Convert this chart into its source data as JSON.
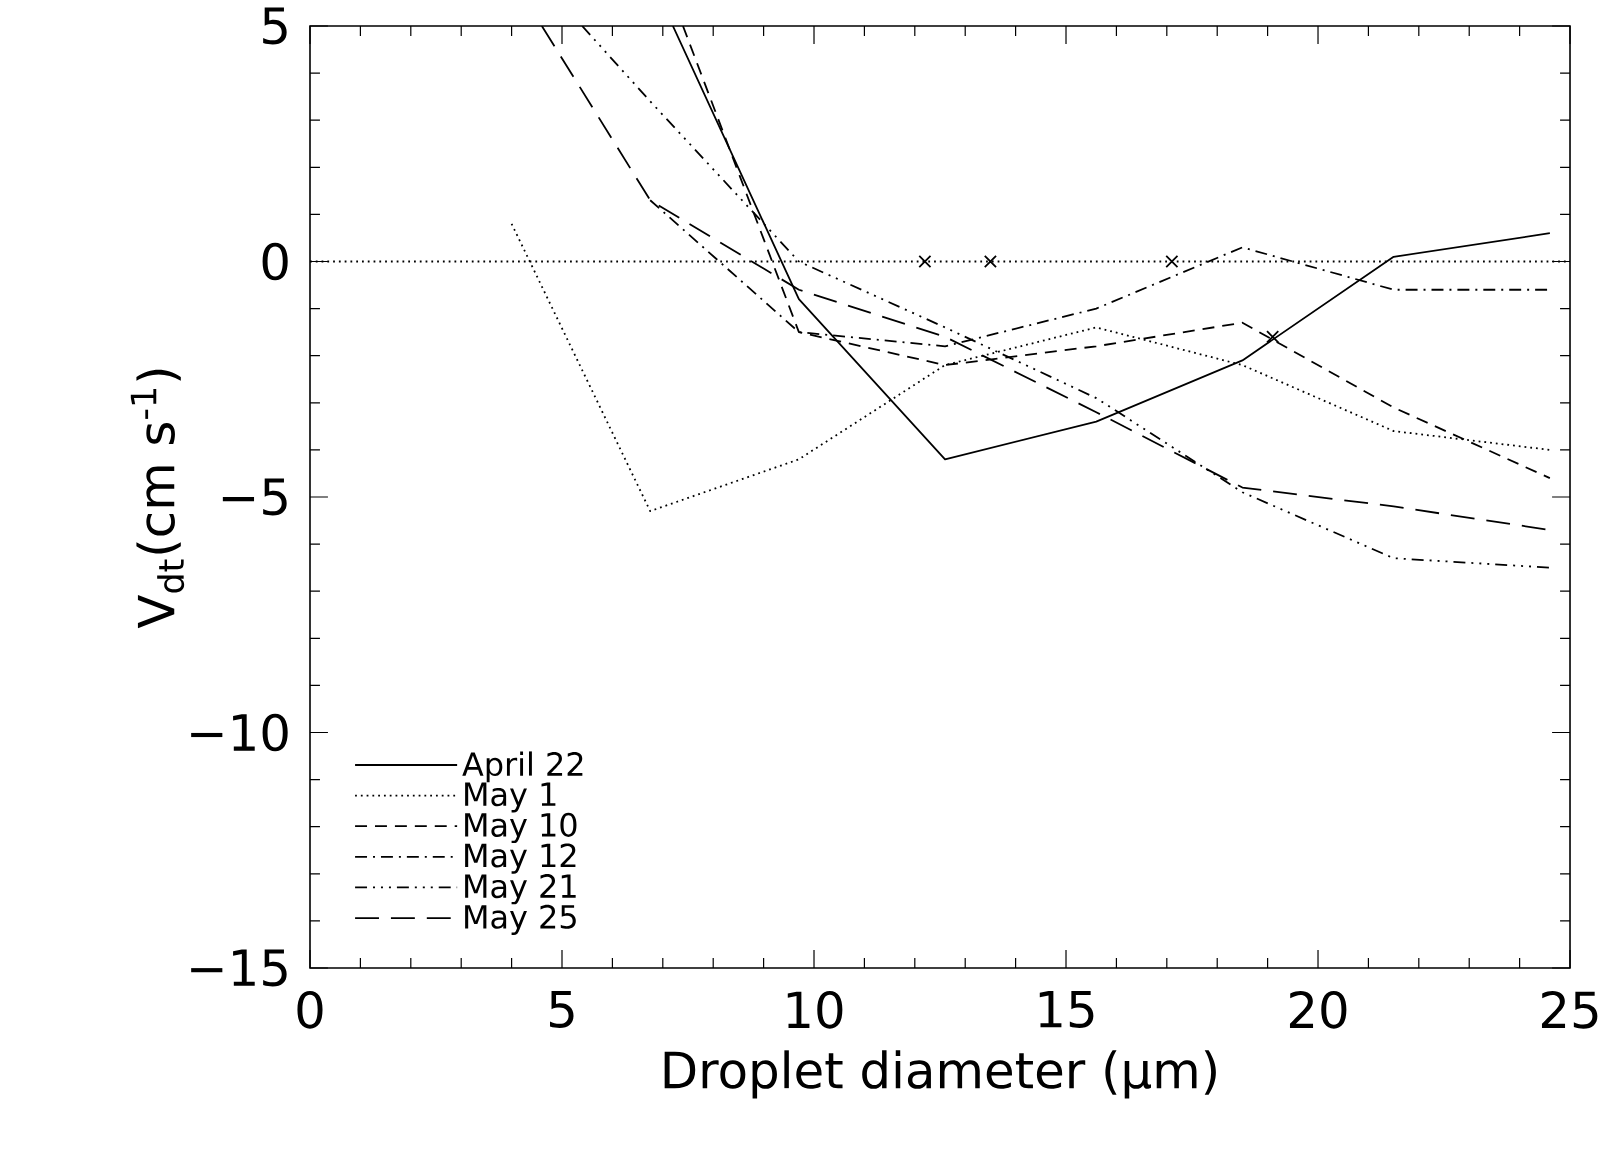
{
  "chart_data": {
    "type": "line",
    "xlabel": "Droplet diameter (μm)",
    "ylabel": "V$_{dt}$(cm s$^{-1}$)",
    "xlim": [
      0,
      25
    ],
    "xticks": [
      0,
      5,
      10,
      15,
      20,
      25
    ],
    "ylim": [
      -15,
      5
    ],
    "yticks": [
      {
        "value": -15,
        "label": "−15"
      },
      {
        "value": -10,
        "label": "−10"
      },
      {
        "value": -5,
        "label": "−5"
      },
      0,
      5
    ],
    "grid": false,
    "legend": "bottom left",
    "ref_lines": [
      {
        "axis": "y",
        "value": 0,
        "line_style": "dotted",
        "color": "#000000"
      }
    ],
    "series": [
      {
        "name": "April 22",
        "color": "#000000",
        "line_style": "solid",
        "x": [
          7.2,
          9.7,
          12.6,
          15.6,
          18.5,
          21.5,
          24.6
        ],
        "values": [
          5,
          -0.8,
          -4.2,
          -3.4,
          -2.1,
          0.1,
          0.6
        ]
      },
      {
        "name": "May 1",
        "color": "#000000",
        "line_style": "dotted",
        "x": [
          4.0,
          6.75,
          9.7,
          12.6,
          15.6,
          18.5,
          21.5,
          24.6
        ],
        "values": [
          0.8,
          -5.3,
          -4.2,
          -2.2,
          -1.4,
          -2.2,
          -3.6,
          -4.0
        ]
      },
      {
        "name": "May 10",
        "color": "#000000",
        "line_style": "dashed",
        "x": [
          7.4,
          9.7,
          12.6,
          15.6,
          18.5,
          21.5,
          24.6
        ],
        "values": [
          5,
          -1.5,
          -2.2,
          -1.8,
          -1.3,
          -3.1,
          -4.6
        ]
      },
      {
        "name": "May 12",
        "color": "#000000",
        "line_style": "dashdot",
        "x": [
          6.75,
          9.7,
          12.6,
          15.6,
          18.5,
          21.5,
          24.6
        ],
        "values": [
          1.3,
          -1.5,
          -1.8,
          -1.0,
          0.3,
          -0.6,
          -0.6
        ]
      },
      {
        "name": "May 21",
        "color": "#000000",
        "line_style": "dashdotdot",
        "x": [
          5.4,
          6.75,
          9.7,
          12.6,
          15.6,
          18.5,
          21.5,
          24.6
        ],
        "values": [
          5,
          3.4,
          0.0,
          -1.4,
          -2.9,
          -4.9,
          -6.3,
          -6.5
        ]
      },
      {
        "name": "May 25",
        "color": "#000000",
        "line_style": "longdash",
        "x": [
          4.6,
          6.75,
          9.7,
          12.6,
          15.6,
          18.5,
          21.5,
          24.6
        ],
        "values": [
          5,
          1.3,
          -0.6,
          -1.6,
          -3.2,
          -4.8,
          -5.2,
          -5.7
        ]
      },
      {
        "type": "scatter",
        "color": "#000000",
        "marker": "cross",
        "x": [
          12.2,
          13.5,
          17.1,
          19.1
        ],
        "values": [
          0,
          0,
          0,
          -1.6
        ]
      }
    ]
  }
}
